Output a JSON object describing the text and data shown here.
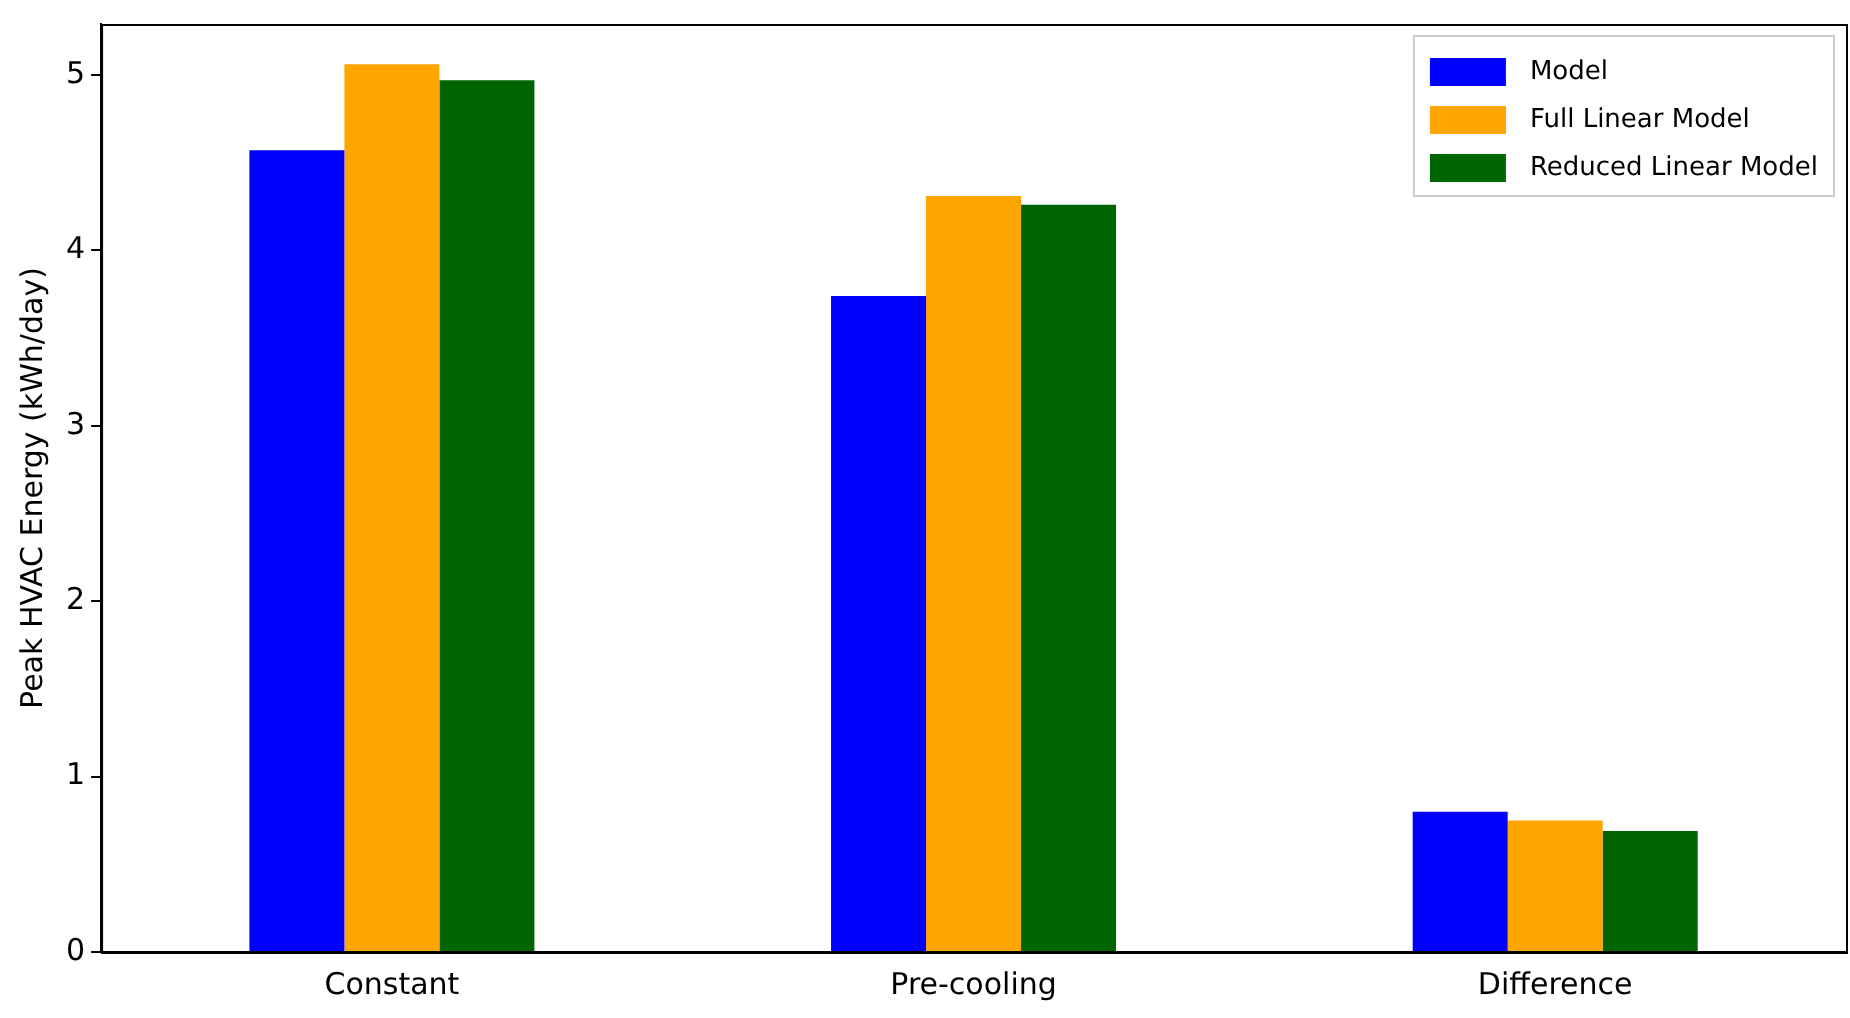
{
  "chart_data": {
    "type": "bar",
    "ylabel": "Peak HVAC Energy (kWh/day)",
    "categories": [
      "Constant",
      "Pre-cooling",
      "Difference"
    ],
    "series": [
      {
        "name": "Model",
        "color": "#0000ff",
        "values": [
          4.57,
          3.74,
          0.8
        ]
      },
      {
        "name": "Full Linear Model",
        "color": "#ffa500",
        "values": [
          5.06,
          4.31,
          0.75
        ]
      },
      {
        "name": "Reduced Linear Model",
        "color": "#006400",
        "values": [
          4.97,
          4.26,
          0.69
        ]
      }
    ],
    "ylim": [
      0,
      5.29
    ],
    "yticks": [
      0,
      1,
      2,
      3,
      4,
      5
    ],
    "grid": false,
    "legend": "top right"
  }
}
